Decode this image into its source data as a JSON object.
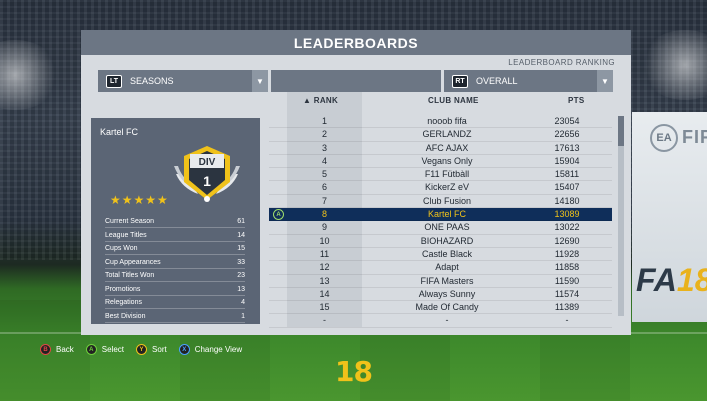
{
  "panel": {
    "title": "LEADERBOARDS",
    "subtitle": "LEADERBOARD RANKING"
  },
  "filters": {
    "left": {
      "button": "LT",
      "label": "SEASONS"
    },
    "middle": {
      "label": ""
    },
    "right": {
      "button": "RT",
      "label": "OVERALL"
    }
  },
  "club_card": {
    "name": "Kartel FC",
    "division_label": "DIV",
    "division_number": "1",
    "stars": "★★★★★",
    "stats": [
      {
        "label": "Current Season",
        "value": "61"
      },
      {
        "label": "League Titles",
        "value": "14"
      },
      {
        "label": "Cups Won",
        "value": "15"
      },
      {
        "label": "Cup Appearances",
        "value": "33"
      },
      {
        "label": "Total Titles Won",
        "value": "23"
      },
      {
        "label": "Promotions",
        "value": "13"
      },
      {
        "label": "Relegations",
        "value": "4"
      },
      {
        "label": "Best Division",
        "value": "1"
      }
    ]
  },
  "table": {
    "headers": {
      "rank": "RANK",
      "club": "CLUB NAME",
      "pts": "PTS",
      "sort_icon": "▲"
    },
    "selected_button": "A",
    "rows": [
      {
        "rank": "1",
        "club": "nooob fifa",
        "pts": "23054"
      },
      {
        "rank": "2",
        "club": "GERLANDZ",
        "pts": "22656"
      },
      {
        "rank": "3",
        "club": "AFC AJAX",
        "pts": "17613"
      },
      {
        "rank": "4",
        "club": "Vegans Only",
        "pts": "15904"
      },
      {
        "rank": "5",
        "club": "F11 Fütbàll",
        "pts": "15811"
      },
      {
        "rank": "6",
        "club": "KickerZ eV",
        "pts": "15407"
      },
      {
        "rank": "7",
        "club": "Club Fusion",
        "pts": "14180"
      },
      {
        "rank": "8",
        "club": "Kartel FC",
        "pts": "13089",
        "selected": true
      },
      {
        "rank": "9",
        "club": "ONE PAAS",
        "pts": "13022"
      },
      {
        "rank": "10",
        "club": "BIOHAZARD",
        "pts": "12690"
      },
      {
        "rank": "11",
        "club": "Castle Black",
        "pts": "11928"
      },
      {
        "rank": "12",
        "club": "Adapt",
        "pts": "11858"
      },
      {
        "rank": "13",
        "club": "FIFA Masters",
        "pts": "11590"
      },
      {
        "rank": "14",
        "club": "Always Sunny",
        "pts": "11574"
      },
      {
        "rank": "15",
        "club": "Made Of Candy",
        "pts": "11389"
      },
      {
        "rank": "-",
        "club": "-",
        "pts": "-"
      }
    ]
  },
  "footer": {
    "hints": [
      {
        "button": "B",
        "label": "Back"
      },
      {
        "button": "A",
        "label": "Select"
      },
      {
        "button": "Y",
        "label": "Sort"
      },
      {
        "button": "X",
        "label": "Change View"
      }
    ]
  },
  "background": {
    "ea_badge": "EA",
    "brand_text": "FIF",
    "brand_bottom": "FA",
    "brand_bottom_num": "18",
    "game_logo": "18"
  },
  "colors": {
    "accent_yellow": "#f0c21a",
    "selected_row": "#0f2e5a",
    "header_bar": "#6c7684",
    "panel_bg": "#d7dbe0"
  }
}
